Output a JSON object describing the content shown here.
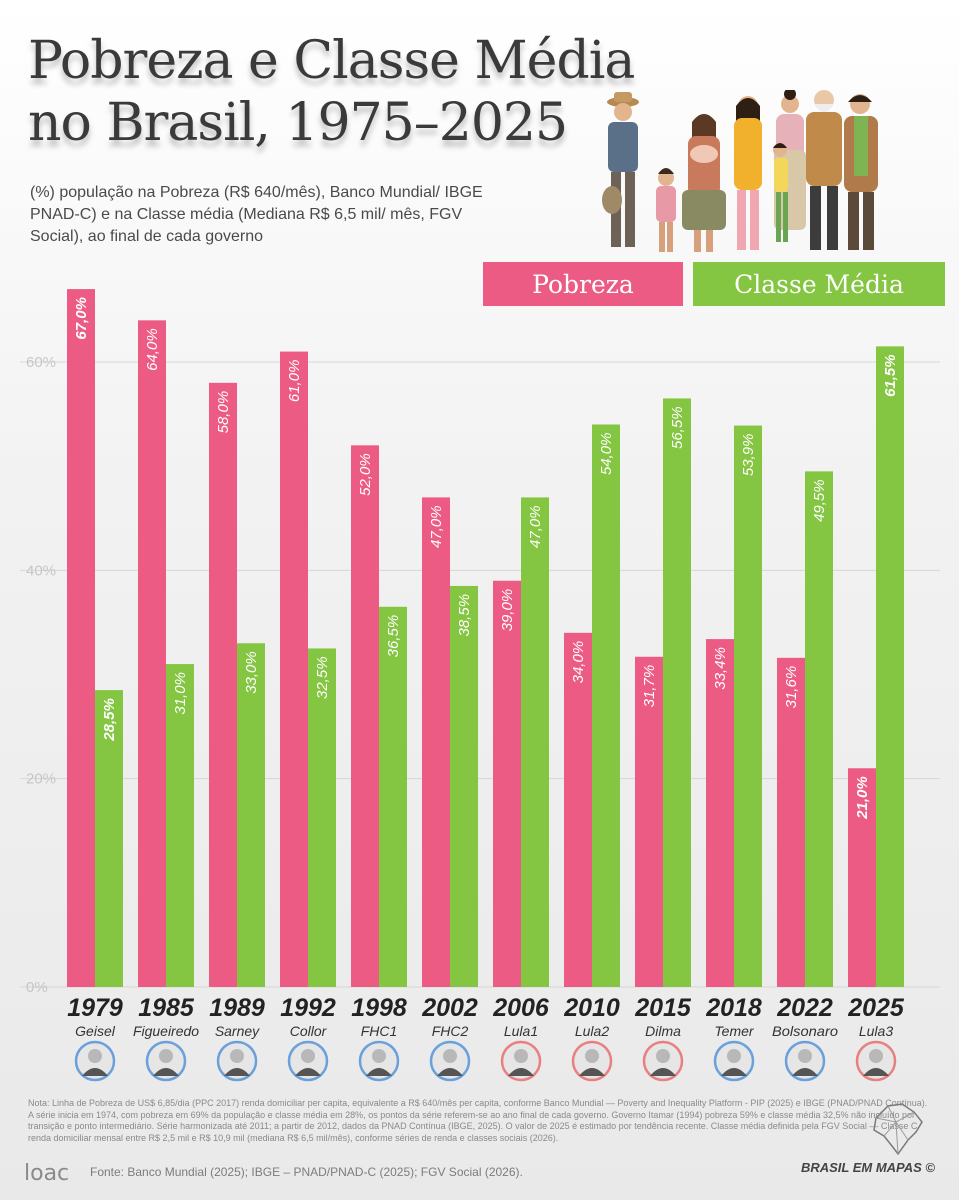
{
  "title_line1": "Pobreza e Classe Média",
  "title_line2": "no Brasil, 1975–2025",
  "subtitle": "(%) população na Pobreza (R$ 640/mês), Banco Mundial/ IBGE PNAD-C) e na Classe média (Mediana R$ 6,5 mil/ mês, FGV Social), ao final de cada governo",
  "legend": {
    "poverty": "Pobreza",
    "middle": "Classe Média"
  },
  "colors": {
    "poverty": "#ec5b83",
    "middle": "#84c542",
    "grid": "#d6d6d6",
    "axis_text": "#c6c6c6"
  },
  "chart_data": {
    "type": "bar",
    "categories": [
      "1979",
      "1985",
      "1989",
      "1992",
      "1998",
      "2002",
      "2006",
      "2010",
      "2015",
      "2018",
      "2022",
      "2025"
    ],
    "governments": [
      "Geisel",
      "Figueiredo",
      "Sarney",
      "Collor",
      "FHC1",
      "FHC2",
      "Lula1",
      "Lula2",
      "Dilma",
      "Temer",
      "Bolsonaro",
      "Lula3"
    ],
    "series": [
      {
        "name": "Pobreza",
        "values": [
          67.0,
          64.0,
          58.0,
          61.0,
          52.0,
          47.0,
          39.0,
          34.0,
          31.7,
          33.4,
          31.6,
          21.0
        ],
        "labels": [
          "67,0%",
          "64,0%",
          "58,0%",
          "61,0%",
          "52,0%",
          "47,0%",
          "39,0%",
          "34,0%",
          "31,7%",
          "33,4%",
          "31,6%",
          "21,0%"
        ]
      },
      {
        "name": "Classe Média",
        "values": [
          28.5,
          31.0,
          33.0,
          32.5,
          36.5,
          38.5,
          47.0,
          54.0,
          56.5,
          53.9,
          49.5,
          61.5
        ],
        "labels": [
          "28,5%",
          "31,0%",
          "33,0%",
          "32,5%",
          "36,5%",
          "38,5%",
          "47,0%",
          "54,0%",
          "56,5%",
          "53,9%",
          "49,5%",
          "61,5%"
        ]
      }
    ],
    "yticks": [
      0,
      20,
      40,
      60
    ],
    "ytick_labels": [
      "0%",
      "20%",
      "40%",
      "60%"
    ],
    "ylim": [
      0,
      68
    ],
    "grid": true,
    "legend_position": "top-right",
    "portrait_ring": [
      "blue",
      "blue",
      "blue",
      "blue",
      "blue",
      "blue",
      "red",
      "red",
      "red",
      "blue",
      "blue",
      "red"
    ]
  },
  "note": "Nota: Linha de Pobreza de US$ 6,85/dia (PPC 2017) renda domiciliar per capita, equivalente a R$ 640/mês per capita, conforme Banco Mundial — Poverty and Inequality Platform - PIP (2025) e IBGE (PNAD/PNAD Contínua). A série inicia em 1974, com pobreza em 69% da população e classe média em 28%, os pontos da série referem-se ao ano final de cada governo. Governo Itamar (1994) pobreza 59% e classe média 32,5% não incluído por transição e ponto intermediário. Série harmonizada até 2011; a partir de 2012, dados da PNAD Contínua (IBGE, 2025). O valor de 2025 é estimado por tendência recente. Classe média definida pela FGV Social — Classe C renda domiciliar mensal entre R$ 2,5 mil e R$ 10,9 mil (mediana R$ 6,5 mil/mês), conforme séries de renda e classes sociais (2026).",
  "source": "Fonte: Banco Mundial (2025); IBGE – PNAD/PNAD-C (2025); FGV Social (2026).",
  "brand": "BRASIL EM MAPAS ©",
  "logo_text": "loac",
  "icons": {
    "logo": "loac-logo",
    "map": "brazil-map-icon",
    "people": "family-illustration"
  }
}
